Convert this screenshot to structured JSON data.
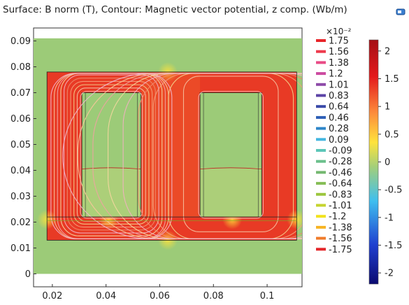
{
  "title": "Surface: B norm (T), Contour: Magnetic vector potential, z comp. (Wb/m)",
  "toolbar": {
    "icon": "plot-window-icon"
  },
  "chart_data": {
    "type": "heatmap",
    "title": "Surface: B norm (T), Contour: Magnetic vector potential, z comp. (Wb/m)",
    "xlabel": "",
    "ylabel": "",
    "xlim": [
      0.013,
      0.113
    ],
    "ylim": [
      -0.005,
      0.095
    ],
    "x_ticks": [
      "0.02",
      "0.04",
      "0.06",
      "0.08",
      "0.1"
    ],
    "y_ticks": [
      "0",
      "0.01",
      "0.02",
      "0.03",
      "0.04",
      "0.05",
      "0.06",
      "0.07",
      "0.08",
      "0.09"
    ],
    "domain": {
      "x": [
        0.013,
        0.113
      ],
      "y": [
        0.0,
        0.091
      ]
    },
    "core": {
      "outer_x": [
        0.018,
        0.111
      ],
      "outer_y": [
        0.013,
        0.078
      ]
    },
    "windows": [
      {
        "x": [
          0.031,
          0.053
        ],
        "y": [
          0.022,
          0.07
        ]
      },
      {
        "x": [
          0.075,
          0.098
        ],
        "y": [
          0.022,
          0.07
        ]
      }
    ],
    "contour_legend": {
      "multiplier": "×10⁻²",
      "levels": [
        "1.75",
        "1.56",
        "1.38",
        "1.2",
        "1.01",
        "0.83",
        "0.64",
        "0.46",
        "0.28",
        "0.09",
        "-0.09",
        "-0.28",
        "-0.46",
        "-0.64",
        "-0.83",
        "-1.01",
        "-1.2",
        "-1.38",
        "-1.56",
        "-1.75"
      ],
      "colors": [
        "#e8262a",
        "#ee3a4d",
        "#e94b86",
        "#cc4aa0",
        "#8e4ba8",
        "#5c44a6",
        "#3a4aa8",
        "#2e5fb6",
        "#2e86c9",
        "#44b6e0",
        "#5cc6b8",
        "#6cc08c",
        "#74b870",
        "#86bd56",
        "#9cc63e",
        "#c6d430",
        "#f2e21e",
        "#f7b424",
        "#f07c2a",
        "#e4262a"
      ]
    },
    "surface_legend": {
      "ticks": [
        "2",
        "1.5",
        "1",
        "0.5",
        "0",
        "-0.5",
        "-1",
        "-1.5",
        "-2"
      ],
      "range": [
        -2.2,
        2.2
      ],
      "colors": [
        "#a50f15",
        "#e41a1c",
        "#fd8d3c",
        "#fee33c",
        "#a3cf7a",
        "#3fbfef",
        "#1f3fd0",
        "#0a0a70"
      ]
    }
  }
}
